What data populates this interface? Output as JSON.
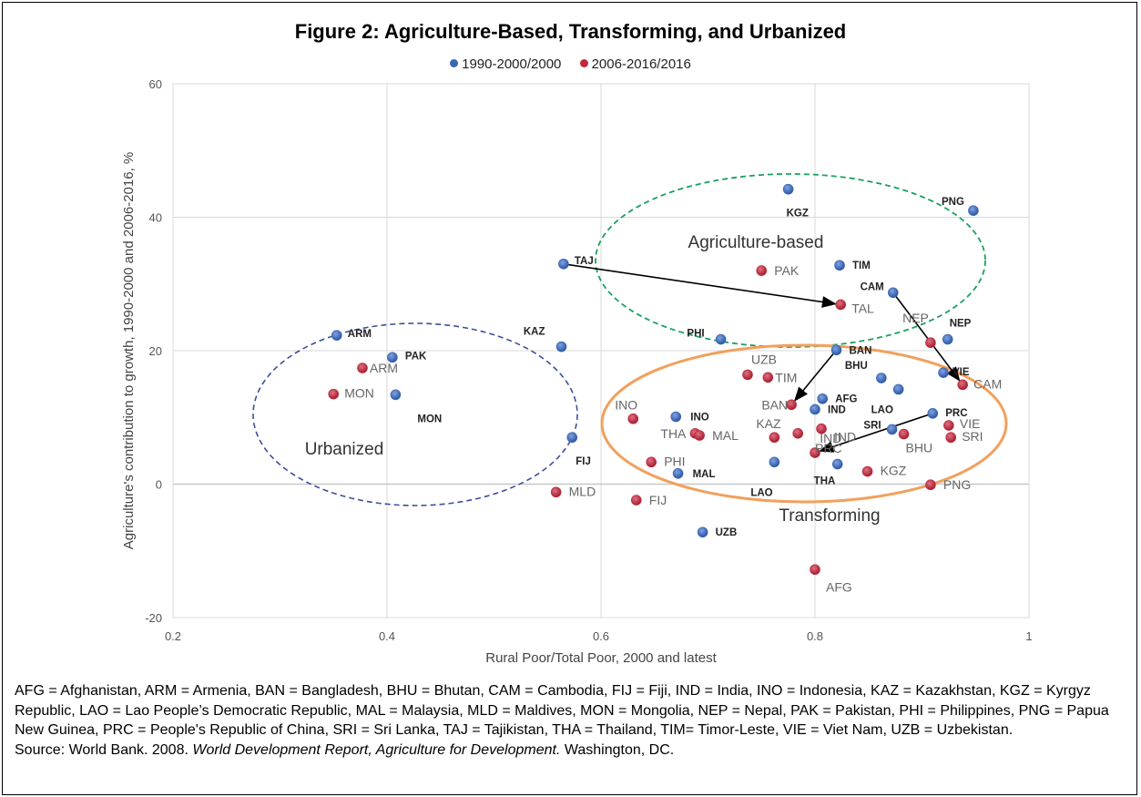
{
  "title": "Figure 2: Agriculture-Based, Transforming, and Urbanized",
  "legend": [
    {
      "name": "1990-2000/2000",
      "color": "#3a66b8"
    },
    {
      "name": "2006-2016/2016",
      "color": "#c0283c"
    }
  ],
  "chart_data": {
    "type": "scatter",
    "xlabel": "Rural Poor/Total Poor, 2000 and latest",
    "ylabel": "Agriculture's contribution to growth, 1990-2000 and 2006-2016, %",
    "xlim": [
      0.2,
      1.0
    ],
    "ylim": [
      -20,
      60
    ],
    "x_ticks": [
      "0.2",
      "0.4",
      "0.6",
      "0.8",
      "1"
    ],
    "y_ticks": [
      "-20",
      "0",
      "20",
      "40",
      "60"
    ],
    "grid": true,
    "legend_position": "top",
    "series": [
      {
        "name": "1990-2000/2000",
        "color": "#3a66b8",
        "points": [
          {
            "label": "ARM",
            "x": 0.353,
            "y": 22.3
          },
          {
            "label": "PAK",
            "x": 0.405,
            "y": 19.0
          },
          {
            "label": "MON",
            "x": 0.408,
            "y": 13.4
          },
          {
            "label": "KAZ",
            "x": 0.563,
            "y": 20.6
          },
          {
            "label": "FIJ",
            "x": 0.573,
            "y": 7.0
          },
          {
            "label": "TAJ",
            "x": 0.565,
            "y": 33.0
          },
          {
            "label": "INO",
            "x": 0.67,
            "y": 10.1
          },
          {
            "label": "MAL",
            "x": 0.672,
            "y": 1.6
          },
          {
            "label": "UZB",
            "x": 0.695,
            "y": -7.2
          },
          {
            "label": "PHI",
            "x": 0.712,
            "y": 21.7
          },
          {
            "label": "LAO",
            "x": 0.762,
            "y": 3.3
          },
          {
            "label": "KGZ",
            "x": 0.775,
            "y": 44.2
          },
          {
            "label": "BAN",
            "x": 0.82,
            "y": 20.1
          },
          {
            "label": "AFG",
            "x": 0.807,
            "y": 12.8
          },
          {
            "label": "IND",
            "x": 0.8,
            "y": 11.2
          },
          {
            "label": "THA",
            "x": 0.821,
            "y": 3.0
          },
          {
            "label": "TIM",
            "x": 0.823,
            "y": 32.8
          },
          {
            "label": "CAM",
            "x": 0.873,
            "y": 28.7
          },
          {
            "label": "BHU",
            "x": 0.862,
            "y": 15.9
          },
          {
            "label": "LAO",
            "x": 0.878,
            "y": 14.2
          },
          {
            "label": "SRI",
            "x": 0.872,
            "y": 8.2
          },
          {
            "label": "PRC",
            "x": 0.91,
            "y": 10.6
          },
          {
            "label": "VIE",
            "x": 0.92,
            "y": 16.7
          },
          {
            "label": "NEP",
            "x": 0.924,
            "y": 21.7
          },
          {
            "label": "PNG",
            "x": 0.948,
            "y": 41.0
          }
        ]
      },
      {
        "name": "2006-2016/2016",
        "color": "#c0283c",
        "points": [
          {
            "label": "MON",
            "x": 0.35,
            "y": 13.5
          },
          {
            "label": "ARM",
            "x": 0.377,
            "y": 17.4
          },
          {
            "label": "MLD",
            "x": 0.558,
            "y": -1.2
          },
          {
            "label": "INO",
            "x": 0.63,
            "y": 9.8
          },
          {
            "label": "FIJ",
            "x": 0.633,
            "y": -2.4
          },
          {
            "label": "PHI",
            "x": 0.647,
            "y": 3.3
          },
          {
            "label": "THA",
            "x": 0.688,
            "y": 7.6
          },
          {
            "label": "MAL",
            "x": 0.692,
            "y": 7.3
          },
          {
            "label": "UZB",
            "x": 0.737,
            "y": 16.4
          },
          {
            "label": "TIM",
            "x": 0.756,
            "y": 16.0
          },
          {
            "label": "PAK",
            "x": 0.75,
            "y": 32.0
          },
          {
            "label": "KAZ",
            "x": 0.762,
            "y": 7.0
          },
          {
            "label": "BAN",
            "x": 0.778,
            "y": 11.9
          },
          {
            "label": "IND",
            "x": 0.784,
            "y": 7.6
          },
          {
            "label": "PRC",
            "x": 0.8,
            "y": 4.7
          },
          {
            "label": "AFG",
            "x": 0.8,
            "y": -12.8
          },
          {
            "label": "IND",
            "x": 0.806,
            "y": 8.3
          },
          {
            "label": "TAL",
            "x": 0.824,
            "y": 26.9
          },
          {
            "label": "KGZ",
            "x": 0.849,
            "y": 1.9
          },
          {
            "label": "BHU",
            "x": 0.883,
            "y": 7.5
          },
          {
            "label": "NEP",
            "x": 0.908,
            "y": 21.2
          },
          {
            "label": "PNG",
            "x": 0.908,
            "y": -0.1
          },
          {
            "label": "VIE",
            "x": 0.925,
            "y": 8.8
          },
          {
            "label": "SRI",
            "x": 0.927,
            "y": 7.0
          },
          {
            "label": "CAM",
            "x": 0.938,
            "y": 14.9
          }
        ]
      }
    ],
    "regions": [
      {
        "label": "Urbanized",
        "color": "#3c4f99",
        "style": "dashed"
      },
      {
        "label": "Agriculture-based",
        "color": "#1aa060",
        "style": "dashed"
      },
      {
        "label": "Transforming",
        "color": "#f2a05c",
        "style": "solid"
      }
    ],
    "arrows": [
      {
        "from": [
          0.565,
          33.0
        ],
        "to": [
          0.824,
          26.9
        ]
      },
      {
        "from": [
          0.873,
          28.7
        ],
        "to": [
          0.938,
          14.9
        ]
      },
      {
        "from": [
          0.82,
          20.1
        ],
        "to": [
          0.778,
          11.9
        ]
      },
      {
        "from": [
          0.91,
          10.6
        ],
        "to": [
          0.8,
          4.7
        ]
      }
    ]
  },
  "note": "AFG = Afghanistan, ARM = Armenia, BAN = Bangladesh, BHU = Bhutan, CAM = Cambodia, FIJ = Fiji, IND = India, INO = Indonesia, KAZ = Kazakhstan, KGZ = Kyrgyz Republic, LAO = Lao People’s Democratic Republic, MAL = Malaysia, MLD = Maldives, MON = Mongolia, NEP = Nepal, PAK = Pakistan, PHI = Philippines, PNG = Papua New Guinea, PRC = People's Republic of China, SRI = Sri Lanka, TAJ = Tajikistan, THA = Thailand, TIM= Timor-Leste, VIE = Viet Nam, UZB = Uzbekistan.",
  "source": {
    "prefix": "Source: World Bank. 2008. ",
    "italic": "World Development Report, Agriculture for Development.",
    "suffix": " Washington, DC."
  }
}
